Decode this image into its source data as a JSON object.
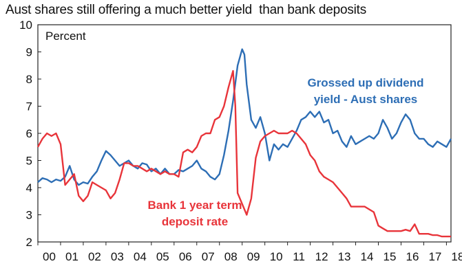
{
  "chart_data": {
    "type": "line",
    "title": "Aust shares still offering a much better yield  than bank deposits",
    "ylabel": "Percent",
    "xlim": [
      2000,
      2018.2
    ],
    "ylim": [
      2,
      10
    ],
    "y_ticks": [
      "2",
      "3",
      "4",
      "5",
      "6",
      "7",
      "8",
      "9",
      "10"
    ],
    "x_ticks": [
      "00",
      "01",
      "02",
      "03",
      "04",
      "05",
      "06",
      "07",
      "08",
      "09",
      "10",
      "11",
      "12",
      "13",
      "14",
      "15",
      "16",
      "17",
      "18"
    ],
    "grid": false,
    "legend": "none",
    "series": [
      {
        "label_lines": [
          "Grossed up dividend",
          "yield - Aust shares"
        ],
        "color": "#2d6eb5",
        "x": [
          2000,
          2000.2,
          2000.4,
          2000.6,
          2000.8,
          2001,
          2001.2,
          2001.4,
          2001.6,
          2001.8,
          2002,
          2002.2,
          2002.4,
          2002.6,
          2002.8,
          2003,
          2003.2,
          2003.4,
          2003.6,
          2003.8,
          2004,
          2004.2,
          2004.4,
          2004.6,
          2004.8,
          2005,
          2005.2,
          2005.4,
          2005.6,
          2005.8,
          2006,
          2006.2,
          2006.4,
          2006.6,
          2006.8,
          2007,
          2007.2,
          2007.4,
          2007.6,
          2007.8,
          2008,
          2008.2,
          2008.4,
          2008.6,
          2008.8,
          2009,
          2009.1,
          2009.2,
          2009.4,
          2009.6,
          2009.8,
          2010,
          2010.2,
          2010.4,
          2010.6,
          2010.8,
          2011,
          2011.2,
          2011.4,
          2011.6,
          2011.8,
          2012,
          2012.2,
          2012.4,
          2012.6,
          2012.8,
          2013,
          2013.2,
          2013.4,
          2013.6,
          2013.8,
          2014,
          2014.2,
          2014.4,
          2014.6,
          2014.8,
          2015,
          2015.2,
          2015.4,
          2015.6,
          2015.8,
          2016,
          2016.2,
          2016.4,
          2016.6,
          2016.8,
          2017,
          2017.2,
          2017.4,
          2017.6,
          2017.8,
          2018,
          2018.2
        ],
        "values": [
          4.2,
          4.35,
          4.3,
          4.2,
          4.3,
          4.25,
          4.4,
          4.8,
          4.3,
          4.1,
          4.2,
          4.15,
          4.4,
          4.6,
          5.0,
          5.35,
          5.2,
          5.0,
          4.8,
          4.9,
          5.0,
          4.8,
          4.7,
          4.9,
          4.85,
          4.6,
          4.7,
          4.5,
          4.7,
          4.5,
          4.5,
          4.65,
          4.6,
          4.7,
          4.8,
          5.0,
          4.7,
          4.6,
          4.4,
          4.3,
          4.5,
          5.2,
          6.1,
          7.2,
          8.5,
          9.1,
          8.9,
          7.8,
          6.5,
          6.2,
          6.6,
          6.0,
          5.0,
          5.6,
          5.4,
          5.6,
          5.5,
          5.8,
          6.1,
          6.5,
          6.6,
          6.8,
          6.6,
          6.8,
          6.4,
          6.5,
          6.0,
          6.1,
          5.7,
          5.5,
          5.9,
          5.6,
          5.7,
          5.8,
          5.9,
          5.8,
          6.0,
          6.5,
          6.2,
          5.8,
          6.0,
          6.4,
          6.7,
          6.5,
          6.0,
          5.8,
          5.8,
          5.6,
          5.5,
          5.7,
          5.6,
          5.5,
          5.8
        ]
      },
      {
        "label_lines": [
          "Bank 1 year term",
          "deposit rate"
        ],
        "color": "#e8343a",
        "x": [
          2000,
          2000.2,
          2000.4,
          2000.6,
          2000.8,
          2001,
          2001.2,
          2001.4,
          2001.6,
          2001.8,
          2002,
          2002.2,
          2002.4,
          2002.6,
          2002.8,
          2003,
          2003.2,
          2003.4,
          2003.6,
          2003.8,
          2004,
          2004.2,
          2004.4,
          2004.6,
          2004.8,
          2005,
          2005.2,
          2005.4,
          2005.6,
          2005.8,
          2006,
          2006.2,
          2006.4,
          2006.6,
          2006.8,
          2007,
          2007.2,
          2007.4,
          2007.6,
          2007.8,
          2008,
          2008.2,
          2008.4,
          2008.6,
          2008.7,
          2008.8,
          2009,
          2009.2,
          2009.4,
          2009.6,
          2009.8,
          2010,
          2010.2,
          2010.4,
          2010.6,
          2010.8,
          2011,
          2011.2,
          2011.4,
          2011.6,
          2011.8,
          2012,
          2012.2,
          2012.4,
          2012.6,
          2012.8,
          2013,
          2013.2,
          2013.4,
          2013.6,
          2013.8,
          2014,
          2014.2,
          2014.4,
          2014.6,
          2014.8,
          2015,
          2015.2,
          2015.4,
          2015.6,
          2015.8,
          2016,
          2016.2,
          2016.4,
          2016.6,
          2016.8,
          2017,
          2017.2,
          2017.4,
          2017.6,
          2017.8,
          2018,
          2018.2
        ],
        "values": [
          5.5,
          5.8,
          6.0,
          5.9,
          6.0,
          5.6,
          4.1,
          4.3,
          4.5,
          3.7,
          3.5,
          3.7,
          4.2,
          4.1,
          4.0,
          3.9,
          3.6,
          3.8,
          4.3,
          4.9,
          4.9,
          4.8,
          4.8,
          4.7,
          4.6,
          4.7,
          4.6,
          4.5,
          4.6,
          4.5,
          4.5,
          4.4,
          5.3,
          5.4,
          5.3,
          5.5,
          5.9,
          6.0,
          6.0,
          6.5,
          6.6,
          7.0,
          7.7,
          8.3,
          7.0,
          3.8,
          3.4,
          3.0,
          3.6,
          5.1,
          5.7,
          5.9,
          6.0,
          6.1,
          6.0,
          6.0,
          6.0,
          6.1,
          6.0,
          5.8,
          5.6,
          5.2,
          5.0,
          4.6,
          4.4,
          4.3,
          4.2,
          4.0,
          3.8,
          3.6,
          3.3,
          3.3,
          3.3,
          3.3,
          3.2,
          3.1,
          2.6,
          2.5,
          2.4,
          2.4,
          2.4,
          2.4,
          2.45,
          2.4,
          2.65,
          2.3,
          2.3,
          2.3,
          2.25,
          2.25,
          2.2,
          2.2,
          2.2
        ]
      }
    ]
  }
}
